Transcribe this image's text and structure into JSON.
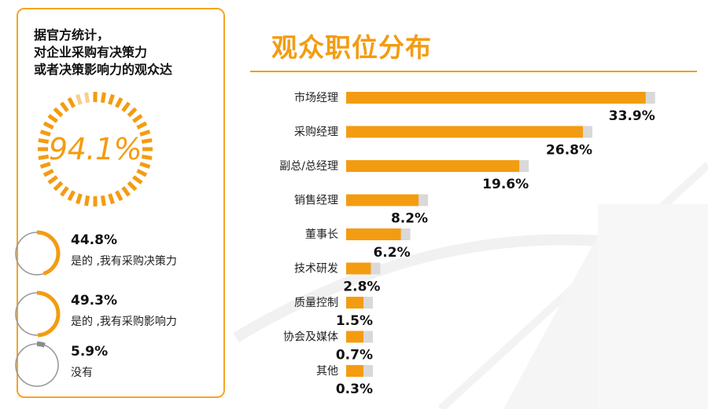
{
  "left_panel": {
    "intro_lines": [
      "据官方统计，",
      "对企业采购有决策力",
      "或者决策影响力的观众达"
    ],
    "headline_value": "94.1%",
    "headline_fraction": 0.941,
    "stats": [
      {
        "value": "44.8%",
        "label": "是的 ,我有采购决策力",
        "fraction": 0.448
      },
      {
        "value": "49.3%",
        "label": "是的 ,我有采购影响力",
        "fraction": 0.493
      },
      {
        "value": "5.9%",
        "label": "没有",
        "fraction": 0.059
      }
    ]
  },
  "colors": {
    "accent": "#f39c12",
    "bar_track": "#d9d9d9",
    "ring_empty": "#9a9a9a"
  },
  "chart_data": {
    "type": "bar",
    "orientation": "horizontal",
    "title": "观众职位分布",
    "categories": [
      "市场经理",
      "采购经理",
      "副总/总经理",
      "销售经理",
      "董事长",
      "技术研发",
      "质量控制",
      "协会及媒体",
      "其他"
    ],
    "values": [
      33.9,
      26.8,
      19.6,
      8.2,
      6.2,
      2.8,
      1.5,
      0.7,
      0.3
    ],
    "value_labels": [
      "33.9%",
      "26.8%",
      "19.6%",
      "8.2%",
      "6.2%",
      "2.8%",
      "1.5%",
      "0.7%",
      "0.3%"
    ],
    "xlabel": "",
    "ylabel": "",
    "grid": false,
    "legend": "none"
  }
}
